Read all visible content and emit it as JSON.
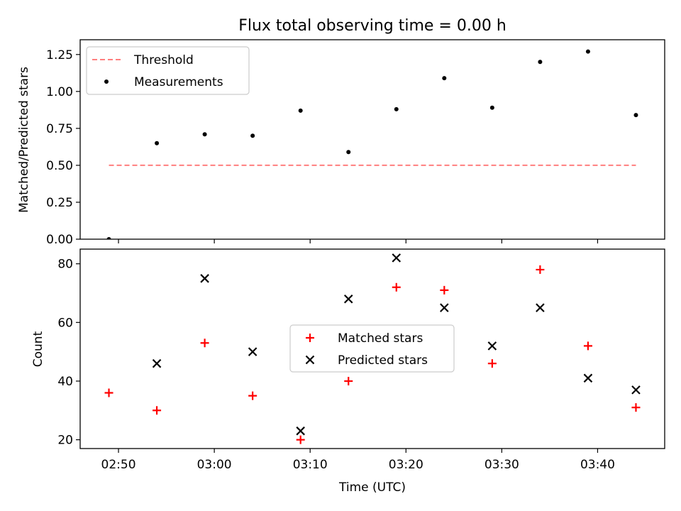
{
  "chart_data": [
    {
      "type": "scatter",
      "title": "Flux total observing time = 0.00 h",
      "xlabel": "",
      "ylabel": "Matched/Predicted stars",
      "ylim": [
        0,
        1.35
      ],
      "yticks": [
        0.0,
        0.25,
        0.5,
        0.75,
        1.0,
        1.25
      ],
      "ytick_labels": [
        "0.00",
        "0.25",
        "0.50",
        "0.75",
        "1.00",
        "1.25"
      ],
      "x": [
        "02:49",
        "02:54",
        "02:59",
        "03:04",
        "03:09",
        "03:14",
        "03:19",
        "03:24",
        "03:29",
        "03:34",
        "03:39",
        "03:44"
      ],
      "series": [
        {
          "name": "Threshold",
          "style": "dashed-line",
          "color": "#ff7f7f",
          "values": [
            0.5,
            0.5,
            0.5,
            0.5,
            0.5,
            0.5,
            0.5,
            0.5,
            0.5,
            0.5,
            0.5,
            0.5
          ]
        },
        {
          "name": "Measurements",
          "style": "dot",
          "color": "#000000",
          "values": [
            0.0,
            0.65,
            0.71,
            0.7,
            0.87,
            0.59,
            0.88,
            1.09,
            0.89,
            1.2,
            1.27,
            0.84
          ]
        }
      ],
      "legend": "top-left",
      "grid": false
    },
    {
      "type": "scatter",
      "title": "",
      "xlabel": "Time (UTC)",
      "ylabel": "Count",
      "ylim": [
        17,
        85
      ],
      "yticks": [
        20,
        40,
        60,
        80
      ],
      "ytick_labels": [
        "20",
        "40",
        "60",
        "80"
      ],
      "xlim": [
        "02:46",
        "03:47"
      ],
      "xticks": [
        "02:50",
        "03:00",
        "03:10",
        "03:20",
        "03:30",
        "03:40"
      ],
      "x": [
        "02:49",
        "02:54",
        "02:59",
        "03:04",
        "03:09",
        "03:14",
        "03:19",
        "03:24",
        "03:29",
        "03:34",
        "03:39",
        "03:44"
      ],
      "series": [
        {
          "name": "Matched stars",
          "style": "plus",
          "color": "#ff0000",
          "values": [
            36,
            30,
            53,
            35,
            20,
            40,
            72,
            71,
            46,
            78,
            52,
            31
          ]
        },
        {
          "name": "Predicted stars",
          "style": "cross",
          "color": "#000000",
          "values": [
            null,
            46,
            75,
            50,
            23,
            68,
            82,
            65,
            52,
            65,
            41,
            37
          ]
        }
      ],
      "legend": "center",
      "grid": false
    }
  ]
}
